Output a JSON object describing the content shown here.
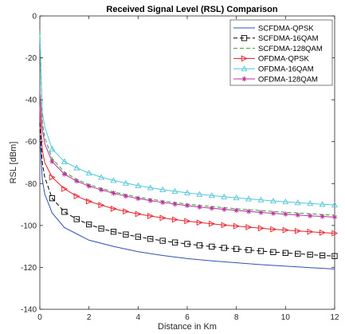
{
  "chart_data": {
    "type": "line",
    "title": "Received Signal Level (RSL) Comparison",
    "xlabel": "Distance in Km",
    "ylabel": "RSL [dBm]",
    "xlim": [
      0,
      12
    ],
    "ylim": [
      -140,
      0
    ],
    "xticks": [
      "0",
      "2",
      "4",
      "6",
      "8",
      "10",
      "12"
    ],
    "yticks": [
      "0",
      "-20",
      "-40",
      "-60",
      "-80",
      "-100",
      "-120",
      "-140"
    ],
    "grid": false,
    "legend_position": "top-right",
    "series": [
      {
        "name": "SCFDMA-QPSK",
        "color": "#3050b4",
        "line_style": "solid",
        "marker": "none",
        "x": [
          0,
          0.1,
          0.2,
          0.5,
          1,
          1.5,
          2,
          3,
          4,
          5,
          6,
          7,
          8,
          9,
          10,
          11,
          12
        ],
        "y": [
          -56,
          -78,
          -85,
          -94,
          -101,
          -104,
          -107,
          -110,
          -112.5,
          -114.3,
          -115.8,
          -116.9,
          -117.8,
          -118.7,
          -119.4,
          -120.1,
          -120.8
        ]
      },
      {
        "name": "SCFDMA-16QAM",
        "color": "#000000",
        "line_style": "dashed",
        "marker": "square",
        "x": [
          0,
          0.1,
          0.2,
          0.5,
          1,
          1.5,
          2,
          2.5,
          3,
          3.5,
          4,
          4.5,
          5,
          5.5,
          6,
          6.5,
          7,
          7.5,
          8,
          8.5,
          9,
          9.5,
          10,
          10.5,
          11,
          11.5,
          12
        ],
        "y": [
          -51,
          -70,
          -77,
          -87,
          -93.5,
          -97,
          -99.5,
          -101.5,
          -103,
          -104.3,
          -105.4,
          -106.4,
          -107.3,
          -108.1,
          -108.8,
          -109.5,
          -110.1,
          -110.7,
          -111.2,
          -111.7,
          -112.2,
          -112.7,
          -113.1,
          -113.5,
          -113.9,
          -114.3,
          -114.6
        ]
      },
      {
        "name": "SCFDMA-128QAM",
        "color": "#31a031",
        "line_style": "dashed",
        "marker": "none",
        "x": [
          0,
          0.1,
          0.2,
          0.5,
          1,
          1.5,
          2,
          3,
          4,
          5,
          6,
          7,
          8,
          9,
          10,
          11,
          12
        ],
        "y": [
          -7,
          -51,
          -58,
          -68,
          -74.5,
          -78,
          -80.5,
          -84,
          -86.5,
          -88.3,
          -89.8,
          -91,
          -92,
          -92.9,
          -93.7,
          -94.4,
          -95.1
        ]
      },
      {
        "name": "OFDMA-QPSK",
        "color": "#e8202a",
        "line_style": "solid",
        "marker": "triangle-right",
        "x": [
          0,
          0.1,
          0.2,
          0.5,
          1,
          1.5,
          2,
          2.5,
          3,
          3.5,
          4,
          4.5,
          5,
          5.5,
          6,
          6.5,
          7,
          7.5,
          8,
          8.5,
          9,
          9.5,
          10,
          10.5,
          11,
          11.5,
          12
        ],
        "y": [
          -44,
          -64,
          -70,
          -77,
          -82.5,
          -86,
          -88.5,
          -90.3,
          -92,
          -93.3,
          -94.5,
          -95.5,
          -96.4,
          -97.2,
          -97.9,
          -98.6,
          -99.2,
          -99.8,
          -100.3,
          -100.8,
          -101.3,
          -101.8,
          -102.2,
          -102.6,
          -103,
          -103.4,
          -103.7
        ]
      },
      {
        "name": "OFDMA-16QAM",
        "color": "#4fc6d9",
        "line_style": "solid",
        "marker": "triangle-up",
        "x": [
          0,
          0.1,
          0.2,
          0.5,
          1,
          1.5,
          2,
          2.5,
          3,
          3.5,
          4,
          4.5,
          5,
          5.5,
          6,
          6.5,
          7,
          7.5,
          8,
          8.5,
          9,
          9.5,
          10,
          10.5,
          11,
          11.5,
          12
        ],
        "y": [
          -9,
          -46,
          -53,
          -63.5,
          -69.5,
          -72.5,
          -75,
          -77,
          -78.5,
          -79.8,
          -81,
          -82,
          -82.9,
          -83.7,
          -84.4,
          -85.1,
          -85.7,
          -86.3,
          -86.8,
          -87.3,
          -87.8,
          -88.3,
          -88.7,
          -89.1,
          -89.5,
          -89.9,
          -90.2
        ]
      },
      {
        "name": "OFDMA-128QAM",
        "color": "#b5309a",
        "line_style": "solid",
        "marker": "asterisk",
        "x": [
          0,
          0.1,
          0.2,
          0.5,
          1,
          1.5,
          2,
          2.5,
          3,
          3.5,
          4,
          4.5,
          5,
          5.5,
          6,
          6.5,
          7,
          7.5,
          8,
          8.5,
          9,
          9.5,
          10,
          10.5,
          11,
          11.5,
          12
        ],
        "y": [
          -36,
          -54,
          -61,
          -69.5,
          -75.5,
          -78.8,
          -81.2,
          -83,
          -84.6,
          -86,
          -87.1,
          -88.1,
          -89,
          -89.8,
          -90.5,
          -91.2,
          -91.8,
          -92.3,
          -92.8,
          -93.3,
          -93.8,
          -94.2,
          -94.6,
          -95,
          -95.4,
          -95.7,
          -96
        ]
      }
    ]
  }
}
